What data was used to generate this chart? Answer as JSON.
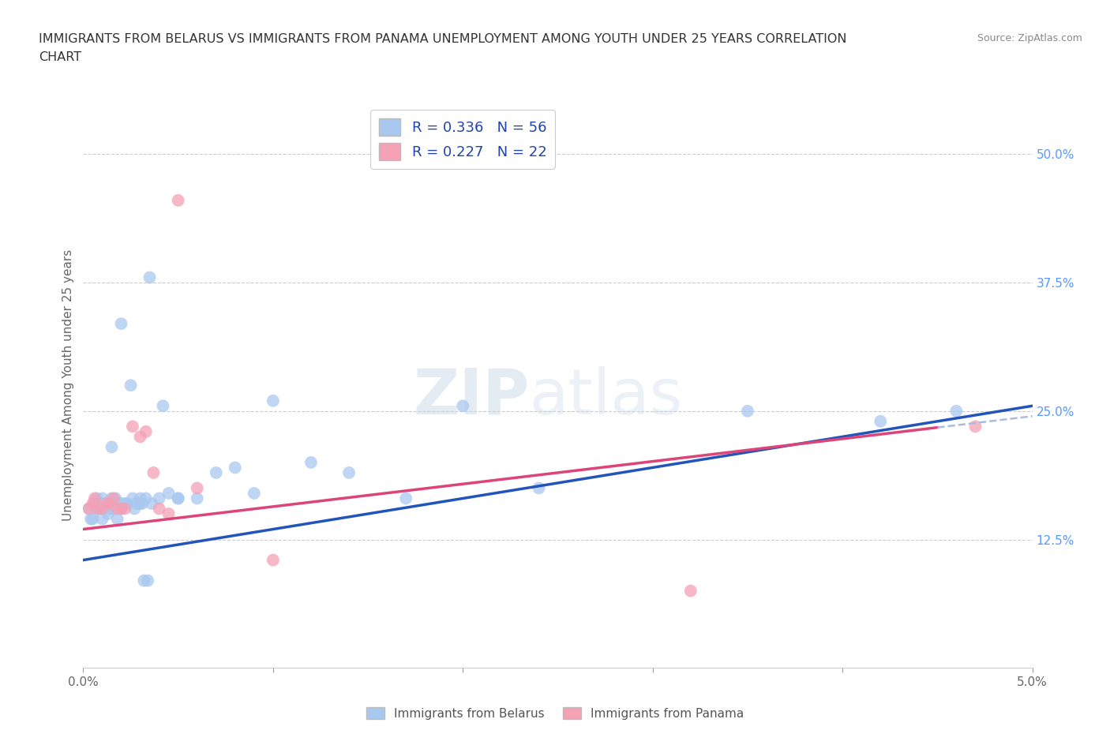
{
  "title_line1": "IMMIGRANTS FROM BELARUS VS IMMIGRANTS FROM PANAMA UNEMPLOYMENT AMONG YOUTH UNDER 25 YEARS CORRELATION",
  "title_line2": "CHART",
  "source": "Source: ZipAtlas.com",
  "ylabel": "Unemployment Among Youth under 25 years",
  "xlim": [
    0.0,
    0.05
  ],
  "ylim": [
    0.0,
    0.55
  ],
  "yticks_right": [
    0.125,
    0.25,
    0.375,
    0.5
  ],
  "ytick_right_labels": [
    "12.5%",
    "25.0%",
    "37.5%",
    "50.0%"
  ],
  "r_belarus": 0.336,
  "n_belarus": 56,
  "r_panama": 0.227,
  "n_panama": 22,
  "color_belarus": "#a8c8f0",
  "color_panama": "#f4a0b5",
  "color_belarus_line": "#2255bb",
  "color_panama_line": "#dd4477",
  "legend_label_belarus": "Immigrants from Belarus",
  "legend_label_panama": "Immigrants from Panama",
  "belarus_x": [
    0.0003,
    0.0004,
    0.0005,
    0.0006,
    0.0007,
    0.0007,
    0.0008,
    0.0009,
    0.001,
    0.001,
    0.001,
    0.0011,
    0.0012,
    0.0013,
    0.0013,
    0.0014,
    0.0015,
    0.0015,
    0.0016,
    0.0017,
    0.0018,
    0.002,
    0.002,
    0.002,
    0.0022,
    0.0023,
    0.0025,
    0.0026,
    0.0027,
    0.0028,
    0.003,
    0.003,
    0.0031,
    0.0032,
    0.0033,
    0.0034,
    0.0035,
    0.0036,
    0.004,
    0.0042,
    0.0045,
    0.005,
    0.005,
    0.006,
    0.007,
    0.008,
    0.009,
    0.01,
    0.012,
    0.014,
    0.017,
    0.02,
    0.024,
    0.035,
    0.042,
    0.046
  ],
  "belarus_y": [
    0.155,
    0.145,
    0.145,
    0.16,
    0.155,
    0.165,
    0.155,
    0.16,
    0.155,
    0.145,
    0.165,
    0.155,
    0.16,
    0.15,
    0.16,
    0.155,
    0.165,
    0.215,
    0.155,
    0.165,
    0.145,
    0.155,
    0.16,
    0.335,
    0.16,
    0.16,
    0.275,
    0.165,
    0.155,
    0.16,
    0.165,
    0.16,
    0.16,
    0.085,
    0.165,
    0.085,
    0.38,
    0.16,
    0.165,
    0.255,
    0.17,
    0.165,
    0.165,
    0.165,
    0.19,
    0.195,
    0.17,
    0.26,
    0.2,
    0.19,
    0.165,
    0.255,
    0.175,
    0.25,
    0.24,
    0.25
  ],
  "panama_x": [
    0.0003,
    0.0005,
    0.0006,
    0.0008,
    0.001,
    0.0012,
    0.0014,
    0.0016,
    0.0018,
    0.002,
    0.0022,
    0.0026,
    0.003,
    0.0033,
    0.0037,
    0.004,
    0.0045,
    0.005,
    0.006,
    0.01,
    0.032,
    0.047
  ],
  "panama_y": [
    0.155,
    0.16,
    0.165,
    0.155,
    0.155,
    0.16,
    0.16,
    0.165,
    0.155,
    0.155,
    0.155,
    0.235,
    0.225,
    0.23,
    0.19,
    0.155,
    0.15,
    0.455,
    0.175,
    0.105,
    0.075,
    0.235
  ],
  "belarus_line_x0": 0.0,
  "belarus_line_y0": 0.105,
  "belarus_line_x1": 0.05,
  "belarus_line_y1": 0.255,
  "panama_line_x0": 0.0,
  "panama_line_y0": 0.135,
  "panama_line_x1": 0.05,
  "panama_line_y1": 0.245
}
